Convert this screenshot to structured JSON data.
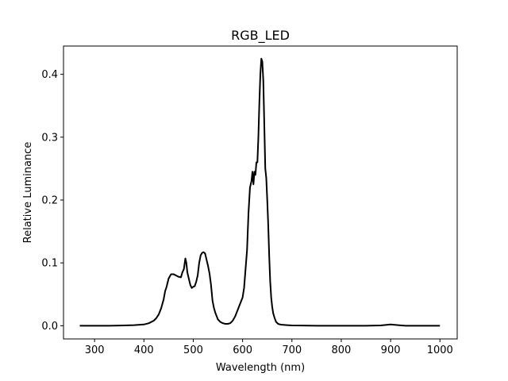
{
  "chart_data": {
    "type": "line",
    "title": "RGB_LED",
    "xlabel": "Wavelength (nm)",
    "ylabel": "Relative Luminance",
    "xlim": [
      237,
      1035
    ],
    "ylim": [
      -0.021,
      0.445
    ],
    "xticks": [
      300,
      400,
      500,
      600,
      700,
      800,
      900,
      1000
    ],
    "yticks": [
      0.0,
      0.1,
      0.2,
      0.3,
      0.4
    ],
    "xtick_labels": [
      "300",
      "400",
      "500",
      "600",
      "700",
      "800",
      "900",
      "1000"
    ],
    "ytick_labels": [
      "0.0",
      "0.1",
      "0.2",
      "0.3",
      "0.4"
    ],
    "grid": false,
    "series": [
      {
        "name": "RGB_LED",
        "color": "#000000",
        "x": [
          270,
          300,
          330,
          360,
          380,
          400,
          410,
          420,
          425,
          430,
          435,
          440,
          443,
          446,
          450,
          455,
          460,
          465,
          470,
          475,
          478,
          481,
          484,
          486,
          488,
          491,
          494,
          497,
          500,
          503,
          506,
          509,
          512,
          515,
          518,
          521,
          524,
          527,
          530,
          533,
          536,
          539,
          542,
          545,
          550,
          555,
          560,
          565,
          570,
          575,
          580,
          585,
          590,
          595,
          600,
          603,
          606,
          609,
          612,
          615,
          618,
          620,
          622,
          624,
          626,
          628,
          630,
          632,
          634,
          636,
          638,
          640,
          642,
          644,
          646,
          648,
          650,
          652,
          654,
          656,
          658,
          660,
          662,
          665,
          668,
          672,
          676,
          680,
          690,
          700,
          750,
          800,
          850,
          880,
          900,
          915,
          930,
          950,
          1000
        ],
        "y": [
          0.0,
          0.0,
          0.0,
          0.0005,
          0.001,
          0.002,
          0.004,
          0.008,
          0.012,
          0.018,
          0.028,
          0.042,
          0.055,
          0.062,
          0.075,
          0.082,
          0.082,
          0.08,
          0.078,
          0.077,
          0.085,
          0.09,
          0.107,
          0.1,
          0.085,
          0.075,
          0.065,
          0.06,
          0.062,
          0.063,
          0.07,
          0.08,
          0.1,
          0.112,
          0.116,
          0.117,
          0.115,
          0.105,
          0.095,
          0.083,
          0.065,
          0.04,
          0.028,
          0.02,
          0.01,
          0.006,
          0.004,
          0.003,
          0.003,
          0.004,
          0.008,
          0.015,
          0.025,
          0.035,
          0.045,
          0.06,
          0.09,
          0.12,
          0.18,
          0.22,
          0.23,
          0.245,
          0.225,
          0.245,
          0.24,
          0.26,
          0.26,
          0.3,
          0.355,
          0.4,
          0.425,
          0.42,
          0.39,
          0.32,
          0.25,
          0.235,
          0.2,
          0.16,
          0.11,
          0.07,
          0.045,
          0.03,
          0.02,
          0.012,
          0.006,
          0.003,
          0.002,
          0.0015,
          0.001,
          0.0005,
          0.0,
          0.0,
          0.0,
          0.0005,
          0.002,
          0.001,
          0.0,
          0.0,
          0.0
        ]
      }
    ]
  }
}
